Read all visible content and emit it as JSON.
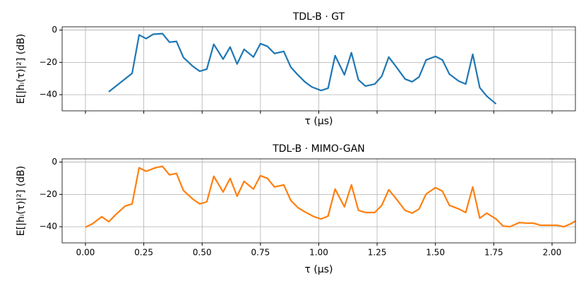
{
  "chart_data": [
    {
      "type": "line",
      "title": "TDL-B · GT",
      "x_label": "τ (μs)",
      "y_label": "E[|hᵢ(τ)|²] (dB)",
      "x": [
        0.1,
        0.2,
        0.23,
        0.26,
        0.29,
        0.33,
        0.36,
        0.39,
        0.42,
        0.46,
        0.49,
        0.52,
        0.55,
        0.59,
        0.62,
        0.65,
        0.68,
        0.72,
        0.75,
        0.78,
        0.81,
        0.85,
        0.88,
        0.91,
        0.94,
        0.97,
        1.01,
        1.04,
        1.07,
        1.11,
        1.14,
        1.17,
        1.2,
        1.24,
        1.27,
        1.3,
        1.33,
        1.37,
        1.4,
        1.43,
        1.46,
        1.5,
        1.53,
        1.56,
        1.6,
        1.63,
        1.66,
        1.69,
        1.72,
        1.76
      ],
      "series": [
        {
          "name": "GT",
          "color": "#1f77b4",
          "values": [
            -38.2,
            -26.8,
            -3,
            -5.3,
            -2.6,
            -2.2,
            -7.5,
            -7,
            -17,
            -22.4,
            -25.5,
            -24.2,
            -8.8,
            -18,
            -10.5,
            -21,
            -11.9,
            -16.7,
            -8.4,
            -10.1,
            -14.5,
            -13.2,
            -22.9,
            -27.7,
            -32,
            -35.2,
            -37.4,
            -36,
            -15.8,
            -27.7,
            -14,
            -30.8,
            -34.7,
            -33.4,
            -28.6,
            -16.7,
            -22.4,
            -30.3,
            -32,
            -29,
            -18.5,
            -16.3,
            -18.5,
            -27.3,
            -31.6,
            -33.4,
            -15,
            -35.6,
            -40.9,
            -45.7
          ]
        }
      ],
      "xlim": [
        -0.1,
        2.1
      ],
      "ylim": [
        -50,
        2
      ],
      "xticks": [
        0,
        0.25,
        0.5,
        0.75,
        1,
        1.25,
        1.5,
        1.75,
        2
      ],
      "xtick_labels": false,
      "yticks": [
        {
          "value": -40,
          "label": "−40"
        },
        {
          "value": -20,
          "label": "−20"
        },
        0
      ],
      "grid": true
    },
    {
      "type": "line",
      "title": "TDL-B · MIMO-GAN",
      "x_label": "τ (μs)",
      "y_label": "E[|hᵢ(τ)|²] (dB)",
      "x": [
        0,
        0.03,
        0.07,
        0.1,
        0.13,
        0.17,
        0.2,
        0.23,
        0.26,
        0.3,
        0.33,
        0.36,
        0.39,
        0.42,
        0.46,
        0.49,
        0.52,
        0.55,
        0.59,
        0.62,
        0.65,
        0.68,
        0.72,
        0.75,
        0.78,
        0.81,
        0.85,
        0.88,
        0.91,
        0.94,
        0.98,
        1.01,
        1.04,
        1.07,
        1.11,
        1.14,
        1.17,
        1.2,
        1.24,
        1.27,
        1.3,
        1.33,
        1.37,
        1.4,
        1.43,
        1.46,
        1.5,
        1.53,
        1.56,
        1.6,
        1.63,
        1.66,
        1.69,
        1.72,
        1.76,
        1.79,
        1.82,
        1.86,
        1.89,
        1.92,
        1.95,
        1.99,
        2.02,
        2.05,
        2.08,
        2.1
      ],
      "series": [
        {
          "name": "MIMO-GAN",
          "color": "#ff7f0e",
          "values": [
            -40.3,
            -38.2,
            -33.8,
            -36.9,
            -32.5,
            -27.2,
            -25.9,
            -3.5,
            -5.7,
            -3.5,
            -2.6,
            -7.9,
            -7,
            -17.6,
            -22.9,
            -25.9,
            -24.6,
            -8.8,
            -18.5,
            -10.1,
            -21.1,
            -11.9,
            -16.7,
            -8.4,
            -10.1,
            -15.4,
            -14.1,
            -23.7,
            -28.1,
            -30.8,
            -33.8,
            -35.2,
            -33.4,
            -16.7,
            -27.7,
            -14.1,
            -29.9,
            -31.2,
            -31.2,
            -26.8,
            -17.1,
            -22.4,
            -29.9,
            -31.6,
            -29,
            -19.8,
            -15.8,
            -18,
            -26.8,
            -29,
            -31.2,
            -15.4,
            -34.7,
            -31.6,
            -35.2,
            -39.6,
            -40,
            -37.4,
            -37.8,
            -37.8,
            -39.1,
            -39.1,
            -39.1,
            -40,
            -38.2,
            -36.5
          ]
        }
      ],
      "xlim": [
        -0.1,
        2.1
      ],
      "ylim": [
        -50,
        2
      ],
      "xticks": [
        {
          "value": 0,
          "label": "0.00"
        },
        {
          "value": 0.25,
          "label": "0.25"
        },
        {
          "value": 0.5,
          "label": "0.50"
        },
        {
          "value": 0.75,
          "label": "0.75"
        },
        {
          "value": 1,
          "label": "1.00"
        },
        {
          "value": 1.25,
          "label": "1.25"
        },
        {
          "value": 1.5,
          "label": "1.50"
        },
        {
          "value": 1.75,
          "label": "1.75"
        },
        {
          "value": 2,
          "label": "2.00"
        }
      ],
      "xtick_labels": true,
      "yticks": [
        {
          "value": -40,
          "label": "−40"
        },
        {
          "value": -20,
          "label": "−20"
        },
        0
      ],
      "grid": true
    }
  ]
}
